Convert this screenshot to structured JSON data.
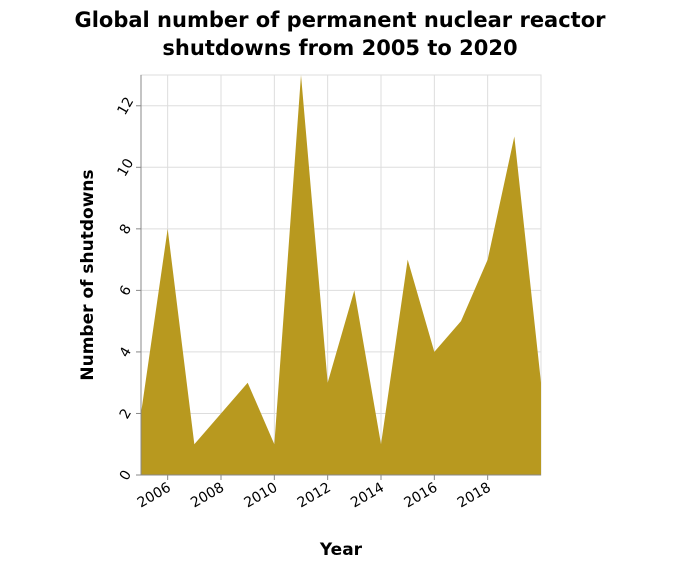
{
  "chart_data": {
    "type": "area",
    "title_lines": [
      "Global number of permanent nuclear reactor",
      "shutdowns from 2005 to 2020"
    ],
    "xlabel": "Year",
    "ylabel": "Number of shutdowns",
    "x": [
      2005,
      2006,
      2007,
      2008,
      2009,
      2010,
      2011,
      2012,
      2013,
      2014,
      2015,
      2016,
      2017,
      2018,
      2019,
      2020
    ],
    "series": [
      {
        "values": [
          2,
          8,
          1,
          2,
          3,
          1,
          13,
          3,
          6,
          1,
          7,
          4,
          5,
          7,
          11,
          3
        ]
      }
    ],
    "xlim": [
      2005,
      2020
    ],
    "ylim": [
      0,
      13
    ],
    "xticks": [
      "2006",
      "2008",
      "2010",
      "2012",
      "2014",
      "2016",
      "2018"
    ],
    "yticks": [
      "0",
      "2",
      "4",
      "6",
      "8",
      "10",
      "12"
    ],
    "grid": true,
    "colors": {
      "fill": "#b8991f",
      "grid": "#dddddd",
      "axis": "#888888"
    }
  }
}
